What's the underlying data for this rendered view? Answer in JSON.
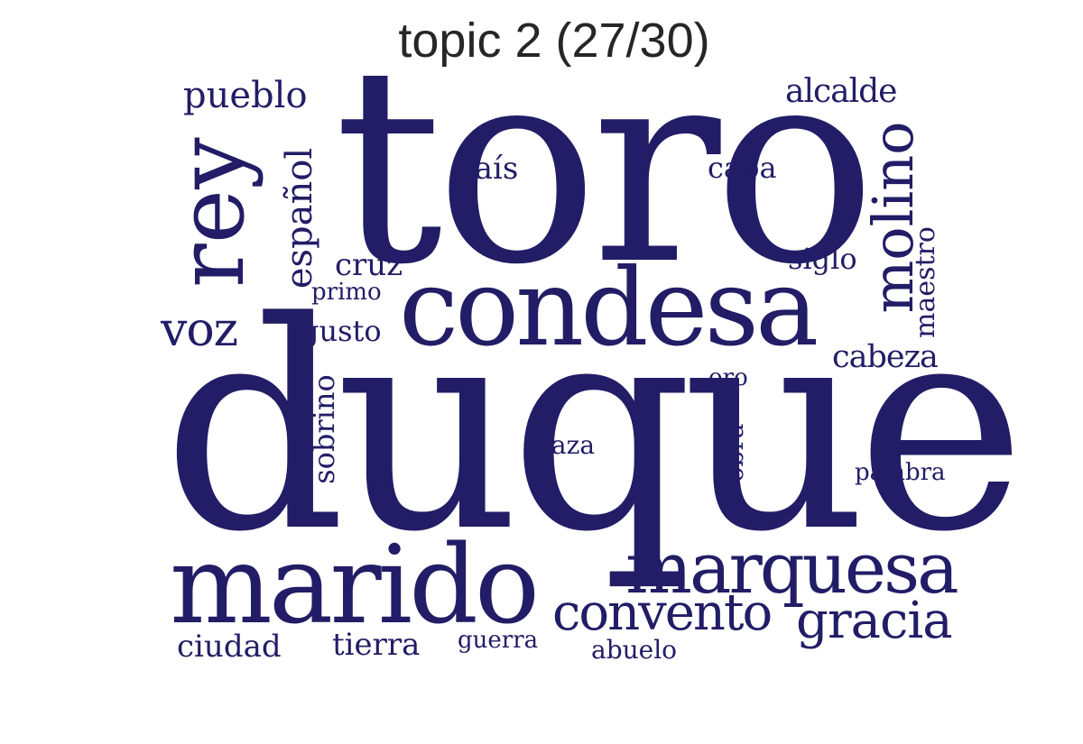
{
  "title": "topic 2 (27/30)",
  "color": "#221d66",
  "words": [
    {
      "text": "toro",
      "weight": 1.0
    },
    {
      "text": "duque",
      "weight": 0.98
    },
    {
      "text": "condesa",
      "weight": 0.5
    },
    {
      "text": "marido",
      "weight": 0.48
    },
    {
      "text": "rey",
      "weight": 0.4
    },
    {
      "text": "marquesa",
      "weight": 0.38
    },
    {
      "text": "molino",
      "weight": 0.3
    },
    {
      "text": "convento",
      "weight": 0.28
    },
    {
      "text": "gracia",
      "weight": 0.26
    },
    {
      "text": "voz",
      "weight": 0.24
    },
    {
      "text": "español",
      "weight": 0.22
    },
    {
      "text": "pueblo",
      "weight": 0.2
    },
    {
      "text": "alcalde",
      "weight": 0.18
    },
    {
      "text": "cabeza",
      "weight": 0.17
    },
    {
      "text": "sobrino",
      "weight": 0.16
    },
    {
      "text": "cruz",
      "weight": 0.15
    },
    {
      "text": "gusto",
      "weight": 0.14
    },
    {
      "text": "país",
      "weight": 0.14
    },
    {
      "text": "capa",
      "weight": 0.14
    },
    {
      "text": "siglo",
      "weight": 0.13
    },
    {
      "text": "maestro",
      "weight": 0.13
    },
    {
      "text": "ciudad",
      "weight": 0.13
    },
    {
      "text": "tierra",
      "weight": 0.13
    },
    {
      "text": "obra",
      "weight": 0.12
    },
    {
      "text": "plaza",
      "weight": 0.11
    },
    {
      "text": "palabra",
      "weight": 0.11
    },
    {
      "text": "primo",
      "weight": 0.11
    },
    {
      "text": "oro",
      "weight": 0.1
    },
    {
      "text": "guerra",
      "weight": 0.1
    },
    {
      "text": "abuelo",
      "weight": 0.1
    }
  ]
}
